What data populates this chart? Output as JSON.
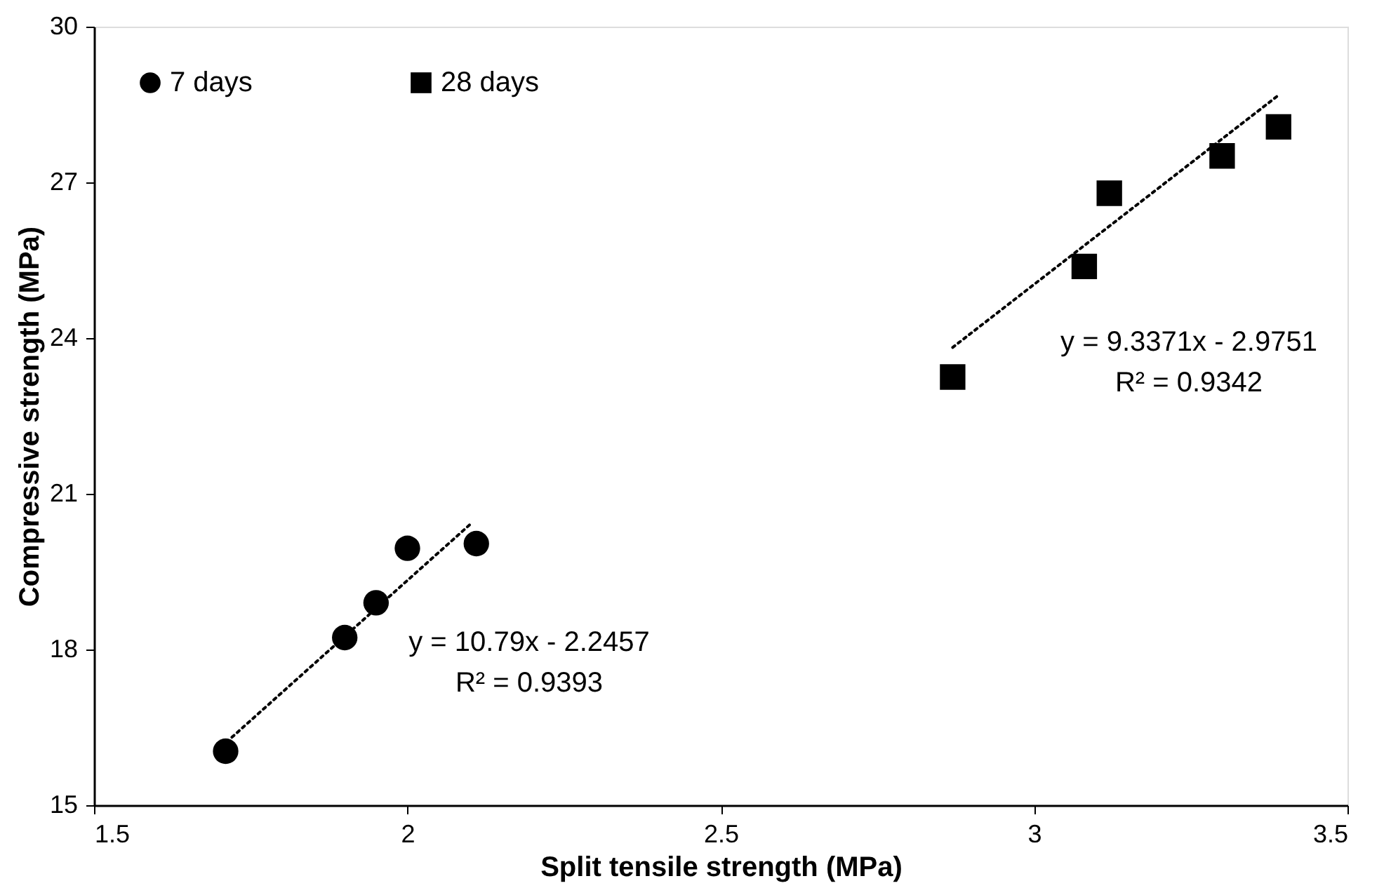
{
  "chart_data": {
    "type": "scatter",
    "xlabel": "Split tensile strength (MPa)",
    "ylabel": "Compressive strength (MPa)",
    "xlim": [
      1.5,
      3.5
    ],
    "xticks": [
      1.5,
      {
        "value": 2,
        "label": "2"
      },
      2.5,
      {
        "value": 3,
        "label": "3"
      },
      3.5
    ],
    "ylim": [
      15,
      30
    ],
    "yticks": [
      15,
      18,
      21,
      24,
      27,
      30
    ],
    "grid": false,
    "legend": "top left",
    "series": [
      {
        "name": "7 days",
        "color": "#000000",
        "marker": "circle",
        "x": [
          1.71,
          1.9,
          1.95,
          2.0,
          2.11
        ],
        "values": [
          16.04,
          18.23,
          18.9,
          19.95,
          20.04
        ]
      },
      {
        "name": "28 days",
        "color": "#000000",
        "marker": "square",
        "x": [
          2.87,
          3.08,
          3.12,
          3.3,
          3.39
        ],
        "values": [
          23.25,
          25.38,
          26.79,
          27.51,
          28.07
        ]
      },
      {
        "type": "line",
        "color": "#000000",
        "line_style": "dotted",
        "x": [
          1.72,
          2.1
        ],
        "values": [
          16.31,
          20.41
        ]
      },
      {
        "type": "line",
        "color": "#000000",
        "line_style": "dotted",
        "x": [
          2.87,
          3.39
        ],
        "values": [
          23.82,
          28.68
        ]
      }
    ],
    "annotations": [
      "y = 10.79x - 2.2457",
      "R² = 0.9393",
      "y = 9.3371x - 2.9751",
      "R² = 0.9342"
    ]
  }
}
